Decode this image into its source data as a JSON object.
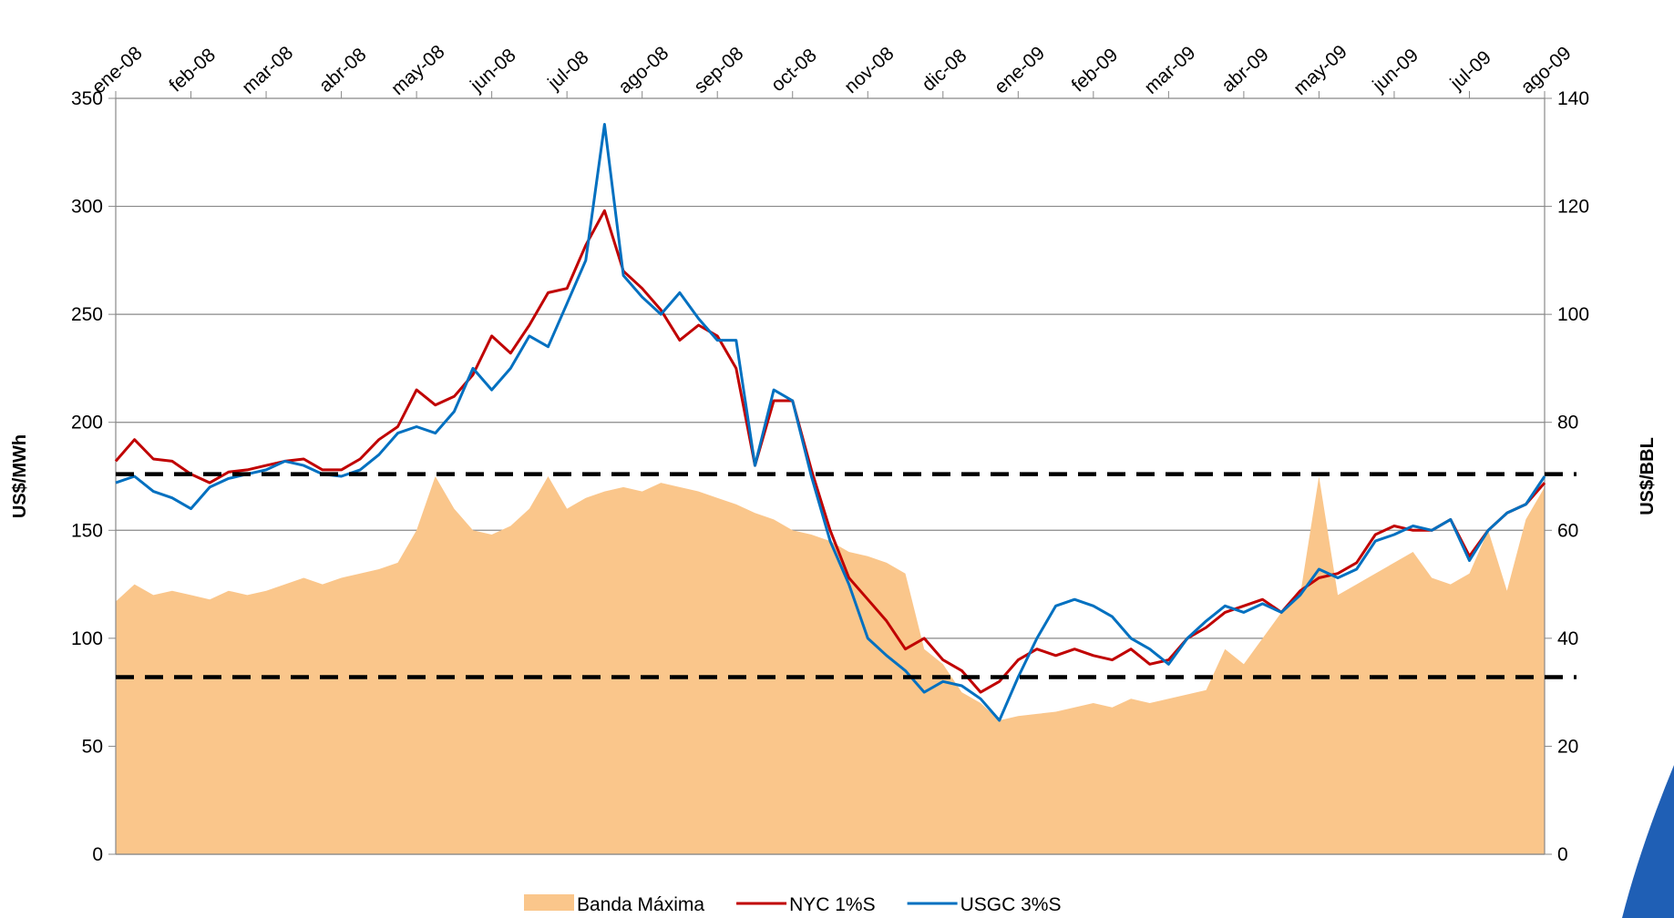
{
  "chart_data": {
    "type": "line",
    "x": [
      "ene-08",
      null,
      null,
      null,
      "feb-08",
      null,
      null,
      null,
      "mar-08",
      null,
      null,
      null,
      "abr-08",
      null,
      null,
      null,
      "may-08",
      null,
      null,
      null,
      "jun-08",
      null,
      null,
      null,
      "jul-08",
      null,
      null,
      null,
      "ago-08",
      null,
      null,
      null,
      "sep-08",
      null,
      null,
      null,
      "oct-08",
      null,
      null,
      null,
      "nov-08",
      null,
      null,
      null,
      "dic-08",
      null,
      null,
      null,
      "ene-09",
      null,
      null,
      null,
      "feb-09",
      null,
      null,
      null,
      "mar-09",
      null,
      null,
      null,
      "abr-09",
      null,
      null,
      null,
      "may-09",
      null,
      null,
      null,
      "jun-09",
      null,
      null,
      null,
      "jul-09",
      null,
      null,
      null,
      "ago-09"
    ],
    "ylabel": "US$/MWh",
    "y2label": "US$/BBL",
    "ylim": [
      0,
      350
    ],
    "yticks": [
      0,
      50,
      100,
      150,
      200,
      250,
      300,
      350
    ],
    "y2lim": [
      0,
      140
    ],
    "y2ticks": [
      0,
      20,
      40,
      60,
      80,
      100,
      120,
      140
    ],
    "grid": true,
    "legend": "bottom",
    "reference_lines": [
      176,
      82
    ],
    "series": [
      {
        "name": "Banda Máxima",
        "type": "area",
        "color": "#fac68b",
        "values": [
          117,
          125,
          120,
          122,
          120,
          118,
          122,
          120,
          122,
          125,
          128,
          125,
          128,
          130,
          132,
          135,
          150,
          175,
          160,
          150,
          148,
          152,
          160,
          175,
          160,
          165,
          168,
          170,
          168,
          172,
          170,
          168,
          165,
          162,
          158,
          155,
          150,
          148,
          145,
          140,
          138,
          135,
          130,
          95,
          88,
          75,
          70,
          62,
          64,
          65,
          66,
          68,
          70,
          68,
          72,
          70,
          72,
          74,
          76,
          95,
          88,
          100,
          112,
          120,
          175,
          120,
          125,
          130,
          135,
          140,
          128,
          125,
          130,
          150,
          122,
          155,
          170
        ]
      },
      {
        "name": "NYC 1%S",
        "type": "line",
        "axis": "y2",
        "color": "#c00000",
        "values": [
          72.8,
          76.8,
          73.2,
          72.8,
          70.4,
          68.8,
          70.8,
          71.2,
          72,
          72.8,
          73.2,
          71.2,
          71.2,
          73.2,
          76.8,
          79.2,
          86,
          83.2,
          84.8,
          88.8,
          96,
          92.8,
          98,
          104,
          104.8,
          112.8,
          119.2,
          108,
          104.8,
          100.8,
          95.2,
          98,
          96,
          90,
          72,
          84,
          84,
          71.2,
          60,
          51.2,
          47.2,
          43.2,
          38,
          40,
          36,
          34,
          30,
          32,
          36,
          38,
          36.8,
          38,
          36.8,
          36,
          38,
          35.2,
          36,
          40,
          42,
          44.8,
          46,
          47.2,
          44.8,
          48.8,
          51.2,
          52,
          54,
          59.2,
          60.8,
          60,
          60,
          62,
          55.2,
          60,
          63.2,
          64.8,
          68.8
        ]
      },
      {
        "name": "USGC 3%S",
        "type": "line",
        "axis": "y2",
        "color": "#0070c0",
        "values": [
          68.8,
          70,
          67.2,
          66,
          64,
          68,
          69.6,
          70.4,
          71.2,
          72.8,
          72,
          70.4,
          70,
          71.2,
          74,
          78,
          79.2,
          78,
          82,
          90,
          86,
          90,
          96,
          94,
          102,
          110,
          135.2,
          107.2,
          103.2,
          100,
          104,
          99.2,
          95.2,
          95.2,
          72,
          86,
          84,
          70,
          58,
          50,
          40,
          36.8,
          34,
          30,
          32,
          31.2,
          28.8,
          24.8,
          32.8,
          40,
          46,
          47.2,
          46,
          44,
          40,
          38,
          35.2,
          40,
          43.2,
          46,
          44.8,
          46.4,
          44.8,
          48,
          52.8,
          51.2,
          52.8,
          58,
          59.2,
          60.8,
          60,
          62,
          54.4,
          60,
          63.2,
          64.8,
          70
        ]
      }
    ]
  }
}
